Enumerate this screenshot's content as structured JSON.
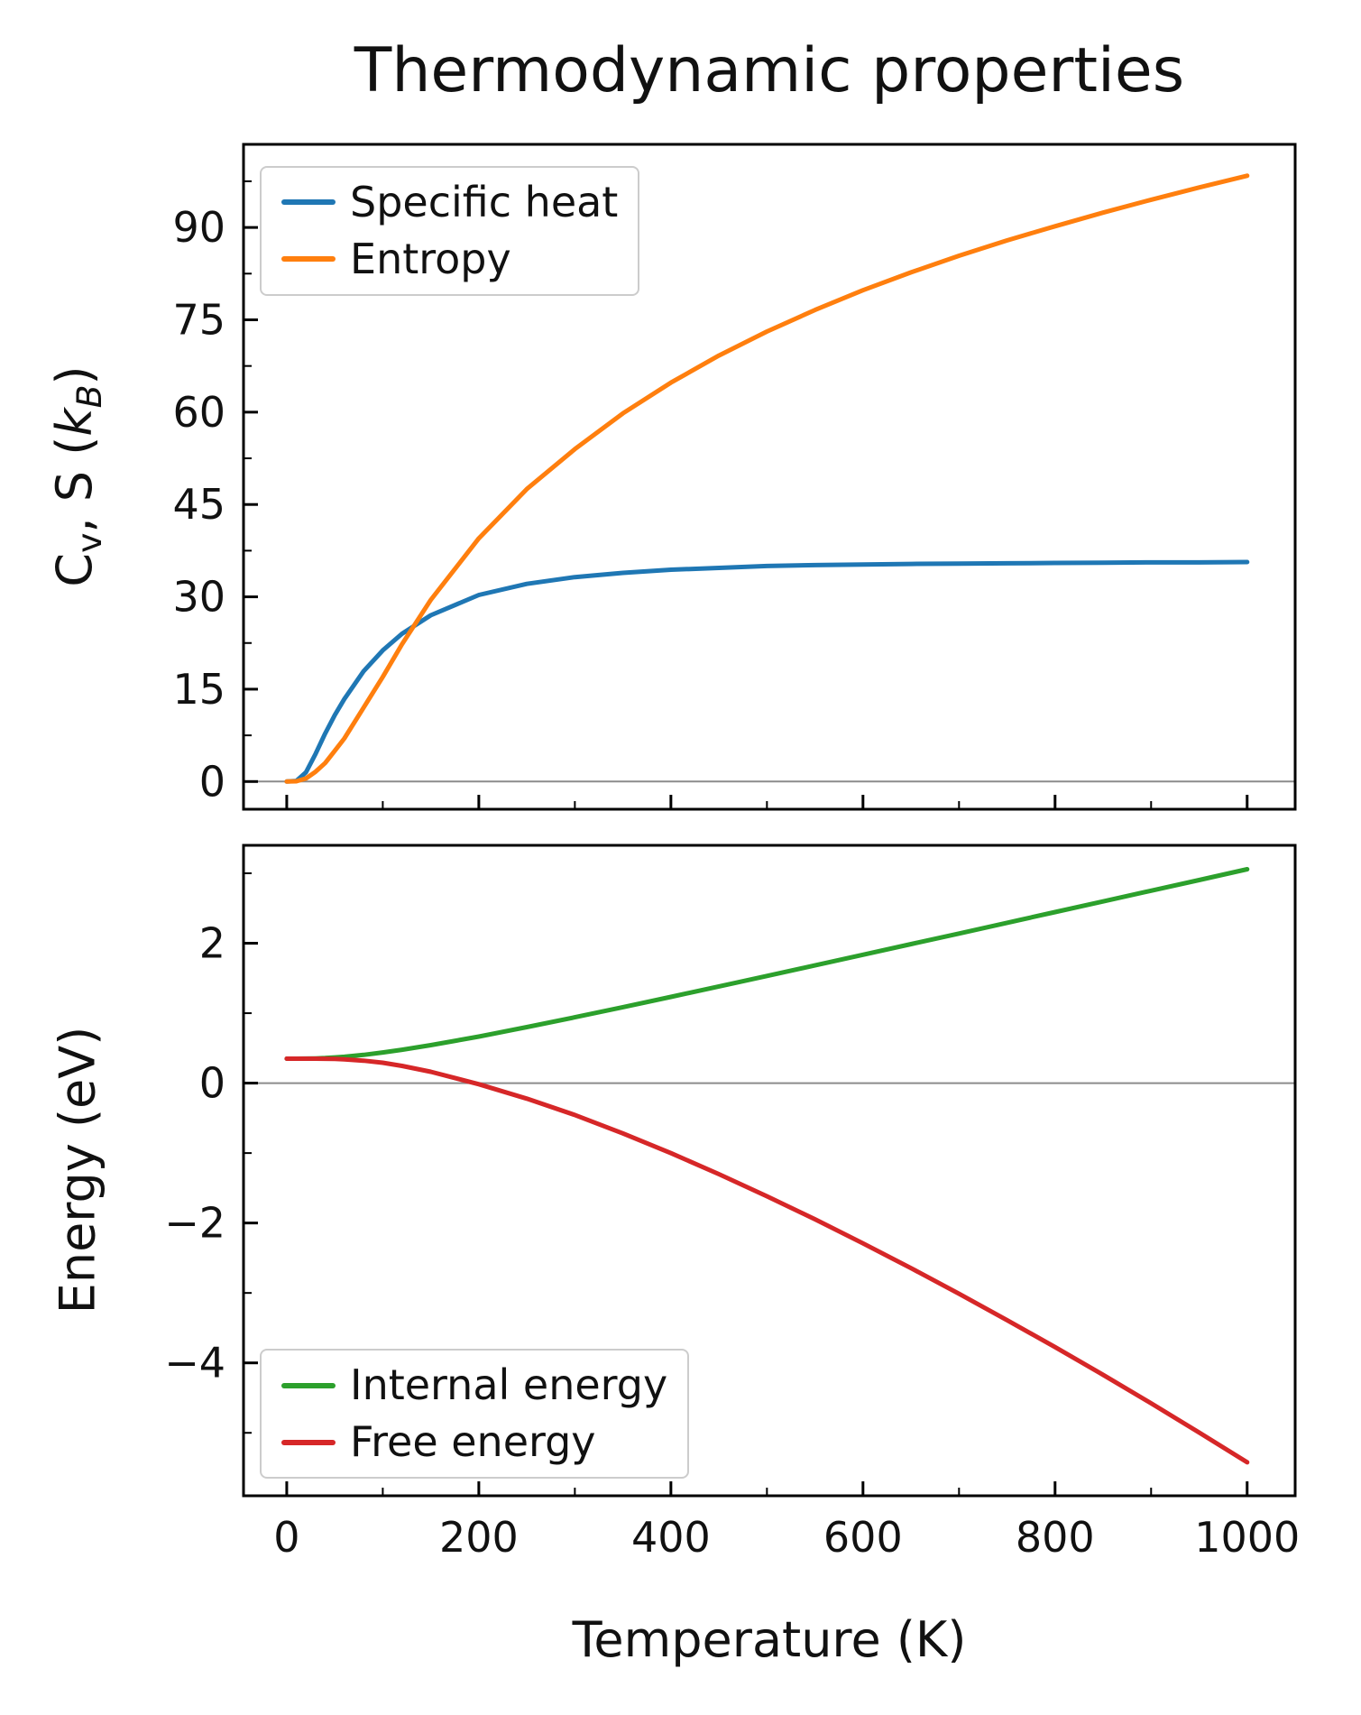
{
  "title": "Thermodynamic properties",
  "xlabel": "Temperature (K)",
  "ylabel_bottom": "Energy (eV)",
  "ylabel_top_plain": "C_v, S (k_B)",
  "ylabel_top_segments": [
    {
      "text": "C"
    },
    {
      "text": "v",
      "sub": true
    },
    {
      "text": ", S ("
    },
    {
      "text": "k",
      "italic": true
    },
    {
      "text": "B",
      "sub": true,
      "italic": true
    },
    {
      "text": ")"
    }
  ],
  "colors": {
    "specific_heat": "#1f77b4",
    "entropy": "#ff7f0e",
    "internal_energy": "#2ca02c",
    "free_energy": "#d62728",
    "zero_line": "#8c8c8c",
    "spine": "#000000",
    "legend_edge": "#cccccc"
  },
  "chart_data": [
    {
      "type": "line",
      "title": "Thermodynamic properties",
      "ylabel": "C_v, S (k_B)",
      "xlabel": "Temperature (K)",
      "xlim": [
        -45,
        1050
      ],
      "ylim": [
        -4.5,
        103.5
      ],
      "xticks": [
        0,
        200,
        400,
        600,
        800,
        1000
      ],
      "yticks": [
        0,
        15,
        30,
        45,
        60,
        75,
        90
      ],
      "show_x_tick_labels": false,
      "zero_line": 0,
      "legend_position": "upper left",
      "x": [
        0,
        10,
        20,
        30,
        40,
        50,
        60,
        80,
        100,
        120,
        150,
        200,
        250,
        300,
        350,
        400,
        450,
        500,
        550,
        600,
        650,
        700,
        750,
        800,
        850,
        900,
        950,
        1000
      ],
      "series": [
        {
          "name": "Specific heat",
          "color": "#1f77b4",
          "values": [
            0,
            0.1,
            1.5,
            4.5,
            7.8,
            10.8,
            13.4,
            17.9,
            21.3,
            24.0,
            27.0,
            30.3,
            32.1,
            33.2,
            33.9,
            34.4,
            34.7,
            35.0,
            35.15,
            35.25,
            35.35,
            35.4,
            35.45,
            35.5,
            35.55,
            35.6,
            35.6,
            35.65
          ]
        },
        {
          "name": "Entropy",
          "color": "#ff7f0e",
          "values": [
            0,
            0.05,
            0.5,
            1.6,
            3.0,
            5.0,
            7.0,
            12.0,
            17.0,
            22.3,
            29.5,
            39.5,
            47.5,
            54.0,
            59.8,
            64.8,
            69.2,
            73.1,
            76.6,
            79.8,
            82.7,
            85.4,
            87.9,
            90.2,
            92.4,
            94.5,
            96.5,
            98.4
          ]
        }
      ]
    },
    {
      "type": "line",
      "title": "",
      "ylabel": "Energy (eV)",
      "xlabel": "Temperature (K)",
      "xlim": [
        -45,
        1050
      ],
      "ylim": [
        -5.9,
        3.4
      ],
      "xticks": [
        0,
        200,
        400,
        600,
        800,
        1000
      ],
      "yticks": [
        -4,
        -2,
        0,
        2
      ],
      "show_x_tick_labels": true,
      "zero_line": 0,
      "legend_position": "lower left",
      "x": [
        0,
        10,
        20,
        30,
        40,
        50,
        60,
        80,
        100,
        120,
        150,
        200,
        250,
        300,
        350,
        400,
        450,
        500,
        550,
        600,
        650,
        700,
        750,
        800,
        850,
        900,
        950,
        1000
      ],
      "series": [
        {
          "name": "Internal energy",
          "color": "#2ca02c",
          "values": [
            0.35,
            0.35,
            0.351,
            0.353,
            0.359,
            0.367,
            0.377,
            0.404,
            0.438,
            0.477,
            0.543,
            0.666,
            0.801,
            0.941,
            1.086,
            1.233,
            1.382,
            1.532,
            1.683,
            1.835,
            1.987,
            2.139,
            2.292,
            2.445,
            2.598,
            2.751,
            2.904,
            3.058
          ]
        },
        {
          "name": "Free energy",
          "color": "#d62728",
          "values": [
            0.35,
            0.35,
            0.35,
            0.349,
            0.348,
            0.345,
            0.341,
            0.321,
            0.291,
            0.246,
            0.162,
            -0.015,
            -0.222,
            -0.455,
            -0.718,
            -1.001,
            -1.301,
            -1.618,
            -1.947,
            -2.291,
            -2.645,
            -3.012,
            -3.389,
            -3.774,
            -4.17,
            -4.578,
            -4.996,
            -5.421
          ]
        }
      ]
    }
  ]
}
